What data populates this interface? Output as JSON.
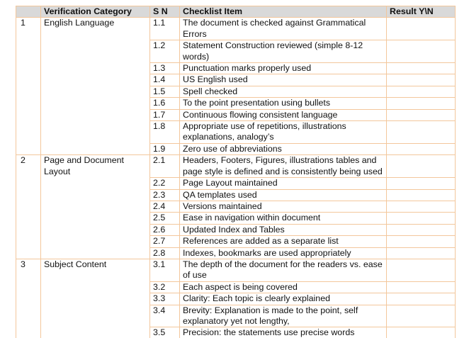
{
  "table": {
    "header": [
      "Verification Category",
      "S N",
      "Checklist Item",
      "Result Y\\N"
    ],
    "sections": [
      {
        "number": "1",
        "category": "English Language",
        "items": [
          {
            "sn": "1.1",
            "item": "The document is checked against Grammatical Errors"
          },
          {
            "sn": "1.2",
            "item": "Statement Construction reviewed  (simple 8-12 words)"
          },
          {
            "sn": "1.3",
            "item": "Punctuation marks properly used"
          },
          {
            "sn": "1.4",
            "item": "US English used"
          },
          {
            "sn": "1.5",
            "item": "Spell checked"
          },
          {
            "sn": "1.6",
            "item": "To the point presentation using bullets"
          },
          {
            "sn": "1.7",
            "item": "Continuous flowing consistent language"
          },
          {
            "sn": "1.8",
            "item": "Appropriate use of repetitions, illustrations explanations, analogy’s"
          },
          {
            "sn": "1.9",
            "item": "Zero use of abbreviations"
          }
        ]
      },
      {
        "number": "2",
        "category": "Page and Document Layout",
        "items": [
          {
            "sn": "2.1",
            "item": "Headers, Footers, Figures, illustrations tables and page style is defined and is consistently being used"
          },
          {
            "sn": "2.2",
            "item": "Page Layout maintained"
          },
          {
            "sn": "2.3",
            "item": "QA templates used"
          },
          {
            "sn": "2.4",
            "item": "Versions maintained"
          },
          {
            "sn": "2.5",
            "item": "Ease in navigation within document"
          },
          {
            "sn": "2.6",
            "item": "Updated Index and Tables"
          },
          {
            "sn": "2.7",
            "item": "References are added as a separate list"
          },
          {
            "sn": "2.8",
            "item": "Indexes, bookmarks are used appropriately"
          }
        ]
      },
      {
        "number": "3",
        "category": "Subject Content",
        "items": [
          {
            "sn": "3.1",
            "item": "The depth of the document for the readers vs. ease of use"
          },
          {
            "sn": "3.2",
            "item": "Each aspect is being covered"
          },
          {
            "sn": "3.3",
            "item": "Clarity: Each topic is clearly explained"
          },
          {
            "sn": "3.4",
            "item": "Brevity: Explanation is made to the point, self explanatory yet not lengthy,"
          },
          {
            "sn": "3.5",
            "item": "Precision: the statements use precise words"
          }
        ]
      }
    ]
  }
}
